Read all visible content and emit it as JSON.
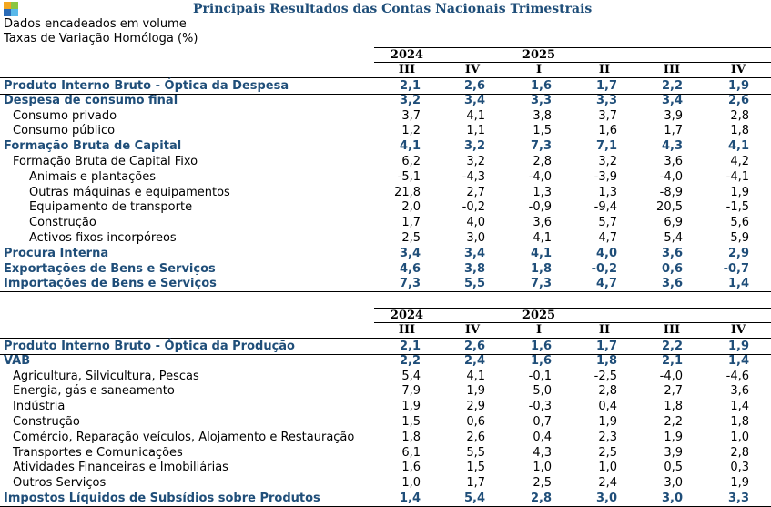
{
  "logo": {
    "colors": [
      "#f3a71f",
      "#8cc640",
      "#2a6bb7",
      "#5ab9ea"
    ]
  },
  "title": "Principais Resultados das Contas Nacionais Trimestrais",
  "subtitle_1": "Dados encadeados em volume",
  "subtitle_2": "Taxas de Variação Homóloga (%)",
  "table_despesa": {
    "years": [
      "2024",
      "2025"
    ],
    "quarters": [
      "III",
      "IV",
      "I",
      "II",
      "III",
      "IV"
    ],
    "rows": [
      {
        "label": "Produto Interno Bruto - Óptica da Despesa",
        "values": [
          "2,1",
          "2,6",
          "1,6",
          "1,7",
          "2,2",
          "1,9"
        ],
        "bold": true
      },
      {
        "label": "Despesa de consumo final",
        "values": [
          "3,2",
          "3,4",
          "3,3",
          "3,3",
          "3,4",
          "2,6"
        ],
        "bold": true
      },
      {
        "label": "Consumo privado",
        "values": [
          "3,7",
          "4,1",
          "3,8",
          "3,7",
          "3,9",
          "2,8"
        ],
        "level": 1
      },
      {
        "label": "Consumo público",
        "values": [
          "1,2",
          "1,1",
          "1,5",
          "1,6",
          "1,7",
          "1,8"
        ],
        "level": 1
      },
      {
        "label": "Formação Bruta de Capital",
        "values": [
          "4,1",
          "3,2",
          "7,3",
          "7,1",
          "4,3",
          "4,1"
        ],
        "bold": true
      },
      {
        "label": "Formação Bruta de Capital Fixo",
        "values": [
          "6,2",
          "3,2",
          "2,8",
          "3,2",
          "3,6",
          "4,2"
        ],
        "level": 1
      },
      {
        "label": "Animais e plantações",
        "values": [
          "-5,1",
          "-4,3",
          "-4,0",
          "-3,9",
          "-4,0",
          "-4,1"
        ],
        "level": 2
      },
      {
        "label": "Outras máquinas e equipamentos",
        "values": [
          "21,8",
          "2,7",
          "1,3",
          "1,3",
          "-8,9",
          "1,9"
        ],
        "level": 2
      },
      {
        "label": "Equipamento de transporte",
        "values": [
          "2,0",
          "-0,2",
          "-0,9",
          "-9,4",
          "20,5",
          "-1,5"
        ],
        "level": 2
      },
      {
        "label": "Construção",
        "values": [
          "1,7",
          "4,0",
          "3,6",
          "5,7",
          "6,9",
          "5,6"
        ],
        "level": 2
      },
      {
        "label": "Activos fixos incorpóreos",
        "values": [
          "2,5",
          "3,0",
          "4,1",
          "4,7",
          "5,4",
          "5,9"
        ],
        "level": 2
      },
      {
        "label": "Procura Interna",
        "values": [
          "3,4",
          "3,4",
          "4,1",
          "4,0",
          "3,6",
          "2,9"
        ],
        "bold": true
      },
      {
        "label": "Exportações de Bens e Serviços",
        "values": [
          "4,6",
          "3,8",
          "1,8",
          "-0,2",
          "0,6",
          "-0,7"
        ],
        "bold": true
      },
      {
        "label": "Importações de Bens e Serviços",
        "values": [
          "7,3",
          "5,5",
          "7,3",
          "4,7",
          "3,6",
          "1,4"
        ],
        "bold": true
      }
    ]
  },
  "table_producao": {
    "years": [
      "2024",
      "2025"
    ],
    "quarters": [
      "III",
      "IV",
      "I",
      "II",
      "III",
      "IV"
    ],
    "rows": [
      {
        "label": "Produto Interno Bruto - Óptica da Produção",
        "values": [
          "2,1",
          "2,6",
          "1,6",
          "1,7",
          "2,2",
          "1,9"
        ],
        "bold": true
      },
      {
        "label": "VAB",
        "values": [
          "2,2",
          "2,4",
          "1,6",
          "1,8",
          "2,1",
          "1,4"
        ],
        "bold": true
      },
      {
        "label": "Agricultura, Silvicultura, Pescas",
        "values": [
          "5,4",
          "4,1",
          "-0,1",
          "-2,5",
          "-4,0",
          "-4,6"
        ],
        "level": 1
      },
      {
        "label": "Energia, gás e saneamento",
        "values": [
          "7,9",
          "1,9",
          "5,0",
          "2,8",
          "2,7",
          "3,6"
        ],
        "level": 1
      },
      {
        "label": "Indústria",
        "values": [
          "1,9",
          "2,9",
          "-0,3",
          "0,4",
          "1,8",
          "1,4"
        ],
        "level": 1
      },
      {
        "label": "Construção",
        "values": [
          "1,5",
          "0,6",
          "0,7",
          "1,9",
          "2,2",
          "1,8"
        ],
        "level": 1
      },
      {
        "label": "Comércio, Reparação veículos, Alojamento e Restauração",
        "values": [
          "1,8",
          "2,6",
          "0,4",
          "2,3",
          "1,9",
          "1,0"
        ],
        "level": 1
      },
      {
        "label": "Transportes e Comunicações",
        "values": [
          "6,1",
          "5,5",
          "4,3",
          "2,5",
          "3,9",
          "2,8"
        ],
        "level": 1
      },
      {
        "label": "Atividades Financeiras e Imobiliárias",
        "values": [
          "1,6",
          "1,5",
          "1,0",
          "1,0",
          "0,5",
          "0,3"
        ],
        "level": 1
      },
      {
        "label": "Outros Serviços",
        "values": [
          "1,0",
          "1,7",
          "2,5",
          "2,4",
          "3,0",
          "1,9"
        ],
        "level": 1
      },
      {
        "label": "Impostos Líquidos de Subsídios sobre Produtos",
        "values": [
          "1,4",
          "5,4",
          "2,8",
          "3,0",
          "3,0",
          "3,3"
        ],
        "bold": true
      }
    ]
  }
}
